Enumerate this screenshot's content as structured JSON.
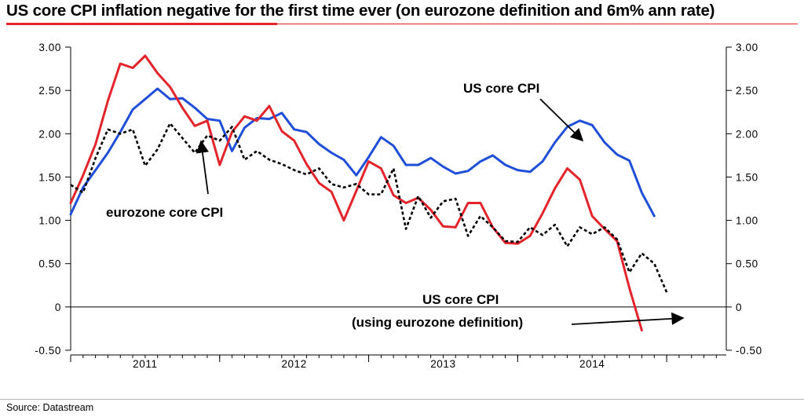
{
  "title": "US core CPI inflation negative for the first time ever (on eurozone definition and 6m% ann rate)",
  "source": "Source: Datastream",
  "chart_data": {
    "type": "line",
    "title": "US core CPI inflation negative for the first time ever (on eurozone definition and 6m% ann rate)",
    "xlabel": "",
    "ylabel": "",
    "xlim": [
      2010.5,
      2014.9
    ],
    "ylim": [
      -0.5,
      3.0
    ],
    "y_ticks": [
      "-0.50",
      "0",
      "0.50",
      "1.00",
      "1.50",
      "2.00",
      "2.50",
      "3.00"
    ],
    "y_tick_values": [
      -0.5,
      0,
      0.5,
      1.0,
      1.5,
      2.0,
      2.5,
      3.0
    ],
    "x_ticks": [
      "2011",
      "2012",
      "2013",
      "2014"
    ],
    "x_tick_values": [
      2011.0,
      2012.0,
      2013.0,
      2014.0
    ],
    "grid": false,
    "zero_line": true,
    "series": [
      {
        "name": "US core CPI",
        "color": "#1f4fd8",
        "style": "solid",
        "x": [
          2010.5,
          2010.583,
          2010.667,
          2010.75,
          2010.833,
          2010.917,
          2011.0,
          2011.083,
          2011.167,
          2011.25,
          2011.333,
          2011.417,
          2011.5,
          2011.583,
          2011.667,
          2011.75,
          2011.833,
          2011.917,
          2012.0,
          2012.083,
          2012.167,
          2012.25,
          2012.333,
          2012.417,
          2012.5,
          2012.583,
          2012.667,
          2012.75,
          2012.833,
          2012.917,
          2013.0,
          2013.083,
          2013.167,
          2013.25,
          2013.333,
          2013.417,
          2013.5,
          2013.583,
          2013.667,
          2013.75,
          2013.833,
          2013.917,
          2014.0,
          2014.083,
          2014.167,
          2014.25,
          2014.333,
          2014.417,
          2014.5
        ],
        "y": [
          1.07,
          1.38,
          1.58,
          1.78,
          2.02,
          2.28,
          2.4,
          2.52,
          2.4,
          2.41,
          2.3,
          2.17,
          2.15,
          1.8,
          2.07,
          2.18,
          2.17,
          2.24,
          2.05,
          2.02,
          1.88,
          1.78,
          1.7,
          1.52,
          1.73,
          1.96,
          1.86,
          1.64,
          1.64,
          1.72,
          1.62,
          1.54,
          1.57,
          1.68,
          1.75,
          1.64,
          1.58,
          1.56,
          1.68,
          1.9,
          2.08,
          2.15,
          2.1,
          1.9,
          1.76,
          1.69,
          1.32,
          1.05,
          null
        ]
      },
      {
        "name": "US core CPI (using eurozone definition)",
        "color": "#e3242b",
        "style": "solid",
        "x": [
          2010.5,
          2010.583,
          2010.667,
          2010.75,
          2010.833,
          2010.917,
          2011.0,
          2011.083,
          2011.167,
          2011.25,
          2011.333,
          2011.417,
          2011.5,
          2011.583,
          2011.667,
          2011.75,
          2011.833,
          2011.917,
          2012.0,
          2012.083,
          2012.167,
          2012.25,
          2012.333,
          2012.417,
          2012.5,
          2012.583,
          2012.667,
          2012.75,
          2012.833,
          2012.917,
          2013.0,
          2013.083,
          2013.167,
          2013.25,
          2013.333,
          2013.417,
          2013.5,
          2013.583,
          2013.667,
          2013.75,
          2013.833,
          2013.917,
          2014.0,
          2014.083,
          2014.167,
          2014.25,
          2014.333,
          2014.417,
          2014.5
        ],
        "y": [
          1.2,
          1.52,
          1.88,
          2.38,
          2.81,
          2.76,
          2.9,
          2.7,
          2.54,
          2.3,
          2.09,
          2.15,
          1.64,
          2.02,
          2.2,
          2.15,
          2.32,
          2.03,
          1.92,
          1.65,
          1.43,
          1.33,
          1.0,
          1.34,
          1.68,
          1.6,
          1.29,
          1.2,
          1.26,
          1.12,
          0.93,
          0.92,
          1.2,
          1.2,
          0.92,
          0.74,
          0.73,
          0.82,
          1.08,
          1.37,
          1.6,
          1.47,
          1.05,
          0.9,
          0.76,
          0.22,
          -0.27,
          null,
          null
        ]
      },
      {
        "name": "eurozone core CPI",
        "color": "#000000",
        "style": "dotted",
        "x": [
          2010.5,
          2010.583,
          2010.667,
          2010.75,
          2010.833,
          2010.917,
          2011.0,
          2011.083,
          2011.167,
          2011.25,
          2011.333,
          2011.417,
          2011.5,
          2011.583,
          2011.667,
          2011.75,
          2011.833,
          2011.917,
          2012.0,
          2012.083,
          2012.167,
          2012.25,
          2012.333,
          2012.417,
          2012.5,
          2012.583,
          2012.667,
          2012.75,
          2012.833,
          2012.917,
          2013.0,
          2013.083,
          2013.167,
          2013.25,
          2013.333,
          2013.417,
          2013.5,
          2013.583,
          2013.667,
          2013.75,
          2013.833,
          2013.917,
          2014.0,
          2014.083,
          2014.167,
          2014.25,
          2014.333,
          2014.417,
          2014.5,
          2014.583
        ],
        "y": [
          1.41,
          1.32,
          1.72,
          2.05,
          2.0,
          2.05,
          1.63,
          1.82,
          2.12,
          1.95,
          1.78,
          1.98,
          1.92,
          2.08,
          1.7,
          1.8,
          1.7,
          1.65,
          1.58,
          1.53,
          1.6,
          1.42,
          1.38,
          1.42,
          1.3,
          1.3,
          1.6,
          0.9,
          1.28,
          1.03,
          1.22,
          1.25,
          0.82,
          1.05,
          0.92,
          0.76,
          0.75,
          0.92,
          0.83,
          0.95,
          0.7,
          0.92,
          0.84,
          0.92,
          0.78,
          0.4,
          0.62,
          0.5,
          0.17,
          null
        ]
      }
    ],
    "annotations": [
      {
        "text": "US core CPI"
      },
      {
        "text": "eurozone core CPI"
      },
      {
        "text": "US core CPI"
      },
      {
        "text": "(using eurozone definition)"
      }
    ]
  }
}
